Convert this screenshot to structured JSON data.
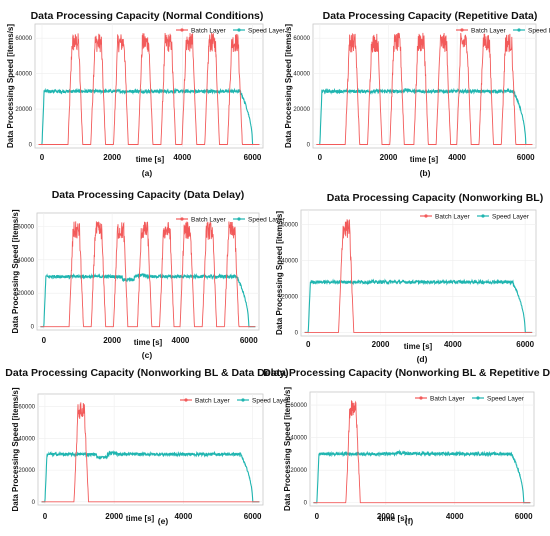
{
  "colors": {
    "batch": "#f25a5a",
    "speed": "#1fb5b0",
    "frame": "#c8c8c8",
    "grid": "#eeeeee"
  },
  "legend": {
    "batch": "Batch Layer",
    "speed": "Speed Layer"
  },
  "chart_data": [
    {
      "type": "line",
      "title": "Data Processing Capacity (Normal Conditions)",
      "xlabel": "time [s]",
      "ylabel": "Data Processing Speed [items/s]",
      "panel_label": "(a)",
      "xticks": [
        0,
        2000,
        4000,
        6000
      ],
      "yticks": [
        0,
        20000,
        40000,
        60000
      ],
      "xlim": [
        -200,
        6300
      ],
      "ylim": [
        -2000,
        68000
      ],
      "legend_position": "top-right",
      "series": [
        {
          "name": "Batch Layer",
          "peaks": [
            950,
            1600,
            2250,
            2950,
            3600,
            4200,
            4850,
            5500
          ],
          "plateau": [
            52000,
            63000
          ],
          "pulse_width": 420
        },
        {
          "name": "Speed Layer",
          "start": 0,
          "end": 6000,
          "level": 30000,
          "bumps": []
        }
      ]
    },
    {
      "type": "line",
      "title": "Data Processing Capacity (Repetitive Data)",
      "xlabel": "time [s]",
      "ylabel": "Data Processing Speed [items/s]",
      "panel_label": "(b)",
      "xticks": [
        0,
        2000,
        4000,
        6000
      ],
      "yticks": [
        0,
        20000,
        40000,
        60000
      ],
      "xlim": [
        -200,
        6300
      ],
      "ylim": [
        -2000,
        68000
      ],
      "legend_position": "top-right",
      "series": [
        {
          "name": "Batch Layer",
          "peaks": [
            950,
            1600,
            2250,
            2950,
            3600,
            4200,
            4850,
            5500
          ],
          "plateau": [
            52000,
            63000
          ],
          "pulse_width": 420
        },
        {
          "name": "Speed Layer",
          "start": 0,
          "end": 6000,
          "level": 30000,
          "bumps": [
            [
              2450,
              2650,
              1500
            ]
          ]
        }
      ]
    },
    {
      "type": "line",
      "title": "Data Processing Capacity (Data Delay)",
      "xlabel": "time [s]",
      "ylabel": "Data Processing Speed [items/s]",
      "panel_label": "(c)",
      "xticks": [
        0,
        2000,
        4000,
        6000
      ],
      "yticks": [
        0,
        20000,
        40000,
        60000
      ],
      "xlim": [
        -200,
        6300
      ],
      "ylim": [
        -2000,
        68000
      ],
      "legend_position": "top-right",
      "series": [
        {
          "name": "Batch Layer",
          "peaks": [
            950,
            1600,
            2250,
            2950,
            3600,
            4200,
            4850,
            5500
          ],
          "plateau": [
            52000,
            63000
          ],
          "pulse_width": 420
        },
        {
          "name": "Speed Layer",
          "start": 0,
          "end": 6000,
          "level": 30000,
          "bumps": [
            [
              2300,
              2650,
              -4000
            ],
            [
              2700,
              3000,
              1500
            ]
          ]
        }
      ]
    },
    {
      "type": "line",
      "title": "Data Processing Capacity (Nonworking BL)",
      "xlabel": "time [s]",
      "ylabel": "Data Processing Speed [items/s]",
      "panel_label": "(d)",
      "xticks": [
        0,
        2000,
        4000,
        6000
      ],
      "yticks": [
        0,
        20000,
        40000,
        60000
      ],
      "xlim": [
        -200,
        6300
      ],
      "ylim": [
        -2000,
        68000
      ],
      "legend_position": "top-center",
      "series": [
        {
          "name": "Batch Layer",
          "peaks": [
            1050
          ],
          "plateau": [
            52000,
            63000
          ],
          "pulse_width": 420
        },
        {
          "name": "Speed Layer",
          "start": 0,
          "end": 6000,
          "level": 28000,
          "bumps": []
        }
      ]
    },
    {
      "type": "line",
      "title": "Data Processing Capacity (Nonworking BL & Data Delay)",
      "xlabel": "time [s]",
      "ylabel": "Data Processing Speed [items/s]",
      "panel_label": "(e)",
      "xticks": [
        0,
        2000,
        4000,
        6000
      ],
      "yticks": [
        0,
        20000,
        40000,
        60000
      ],
      "xlim": [
        -200,
        6300
      ],
      "ylim": [
        -2000,
        68000
      ],
      "legend_position": "top-center",
      "series": [
        {
          "name": "Batch Layer",
          "peaks": [
            1050
          ],
          "plateau": [
            52000,
            63000
          ],
          "pulse_width": 420
        },
        {
          "name": "Speed Layer",
          "start": 0,
          "end": 6000,
          "level": 30000,
          "bumps": [
            [
              1500,
              1800,
              -4000
            ],
            [
              1850,
              2100,
              1500
            ]
          ]
        }
      ]
    },
    {
      "type": "line",
      "title": "Data Processing Capacity (Nonworking BL & Repetitive Data)",
      "xlabel": "time [s]",
      "ylabel": "Data Processing Speed [items/s]",
      "panel_label": "(f)",
      "xticks": [
        0,
        2000,
        4000,
        6000
      ],
      "yticks": [
        0,
        20000,
        40000,
        60000
      ],
      "xlim": [
        -200,
        6300
      ],
      "ylim": [
        -2000,
        68000
      ],
      "legend_position": "top-center",
      "series": [
        {
          "name": "Batch Layer",
          "peaks": [
            1050
          ],
          "plateau": [
            52000,
            63000
          ],
          "pulse_width": 420
        },
        {
          "name": "Speed Layer",
          "start": 0,
          "end": 6000,
          "level": 30000,
          "bumps": [
            [
              2300,
              2550,
              1500
            ]
          ]
        }
      ]
    }
  ]
}
